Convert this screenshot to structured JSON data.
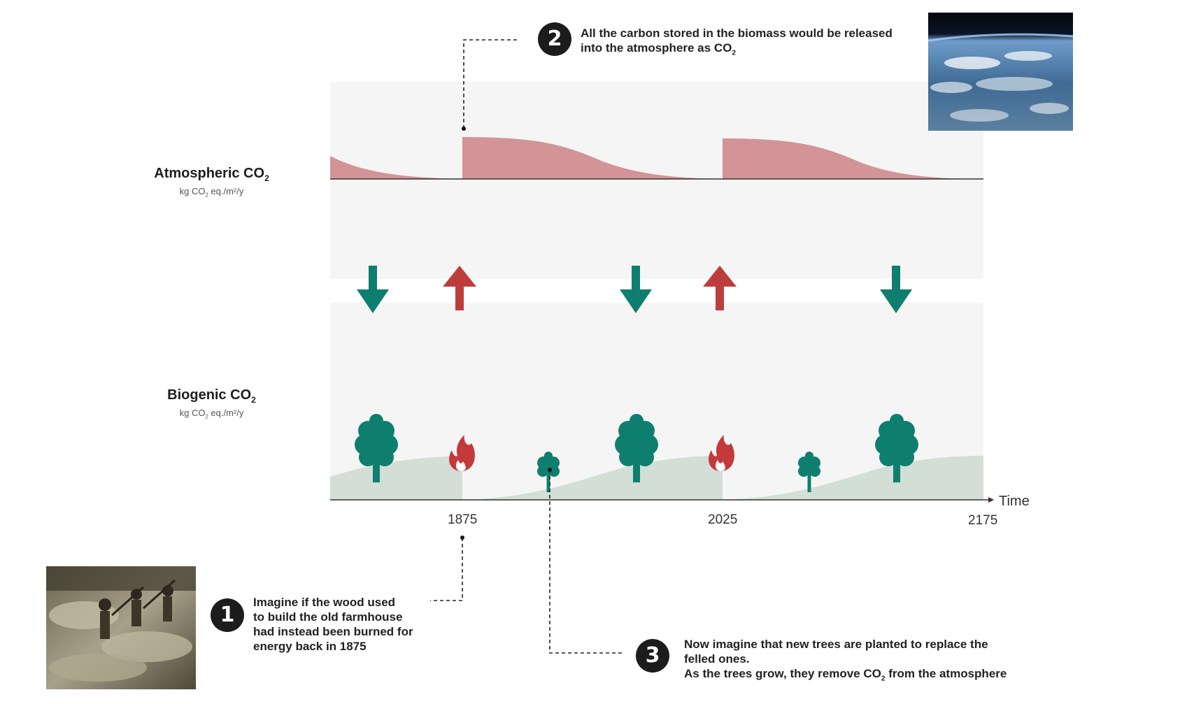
{
  "atmospheric": {
    "title": "Atmospheric CO",
    "title_sub": "2",
    "unit_a": "kg CO",
    "unit_sub": "2",
    "unit_b": " eq./m²/y"
  },
  "biogenic": {
    "title": "Biogenic CO",
    "title_sub": "2",
    "unit_a": "kg CO",
    "unit_sub": "2",
    "unit_b": " eq./m²/y"
  },
  "axis": {
    "time_label": "Time",
    "ticks": [
      "1875",
      "2025",
      "2175"
    ]
  },
  "notes": {
    "n1": {
      "number": "1",
      "lines": [
        "Imagine if the wood used",
        "to build the old farmhouse",
        "had instead been burned for",
        "energy back in 1875"
      ]
    },
    "n2": {
      "number": "2",
      "line1": "All the carbon stored in the biomass would be released",
      "line2": "into the atmosphere as CO",
      "line2_sub": "2"
    },
    "n3": {
      "number": "3",
      "line1": "Now imagine that new trees are planted to replace the",
      "line2": "felled ones.",
      "line3a": "As the trees grow, they remove CO",
      "line3_sub": "2",
      "line3b": " from the atmosphere"
    }
  },
  "colors": {
    "atmos_fill": "#d29496",
    "bio_fill": "#d2ded6",
    "tree": "#0e7f6e",
    "fire": "#c4393b",
    "arrow_down": "#0e7f6e",
    "arrow_up": "#bd3d3d",
    "panel": "#f5f5f5"
  },
  "icons": {
    "trees": [
      "tree-icon",
      "sapling-icon"
    ],
    "fire": "fire-icon",
    "arrows": [
      "arrow-down-icon",
      "arrow-up-icon"
    ],
    "photos": [
      "earth-photo",
      "loggers-photo"
    ]
  }
}
